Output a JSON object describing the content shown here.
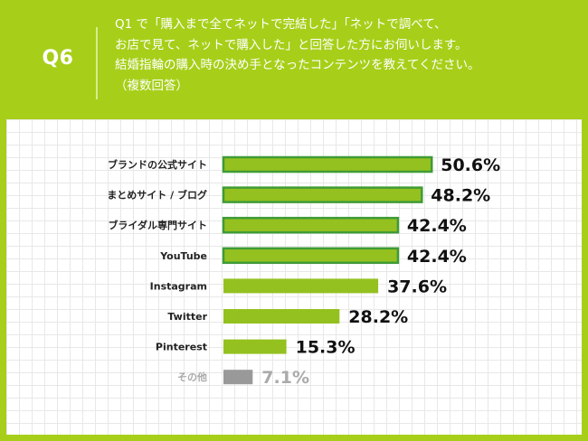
{
  "header": {
    "qnum": "Q6",
    "question": "Q1 で「購入まで全てネットで完結した」「ネットで調べて、\nお店で見て、ネットで購入した」と回答した方にお伺いします。\n結婚指輪の購入時の決め手となったコンテンツを教えてください。\n（複数回答）"
  },
  "colors": {
    "accent": "#a7cf19",
    "bar_fill": "#94c11f",
    "bar_outline": "#3f9b37",
    "other": "#999999",
    "other_label": "#aaaaaa"
  },
  "chart_data": {
    "type": "bar",
    "orientation": "horizontal",
    "categories": [
      "ブランドの公式サイト",
      "まとめサイト / ブログ",
      "ブライダル専門サイト",
      "YouTube",
      "Instagram",
      "Twitter",
      "Pinterest",
      "その他"
    ],
    "values": [
      50.6,
      48.2,
      42.4,
      42.4,
      37.6,
      28.2,
      15.3,
      7.1
    ],
    "value_labels": [
      "50.6%",
      "48.2%",
      "42.4%",
      "42.4%",
      "37.6%",
      "28.2%",
      "15.3%",
      "7.1%"
    ],
    "highlighted": [
      true,
      true,
      true,
      true,
      false,
      false,
      false,
      false
    ],
    "muted": [
      false,
      false,
      false,
      false,
      false,
      false,
      false,
      true
    ],
    "grid": true,
    "title": "",
    "xlabel": "",
    "ylabel": ""
  }
}
